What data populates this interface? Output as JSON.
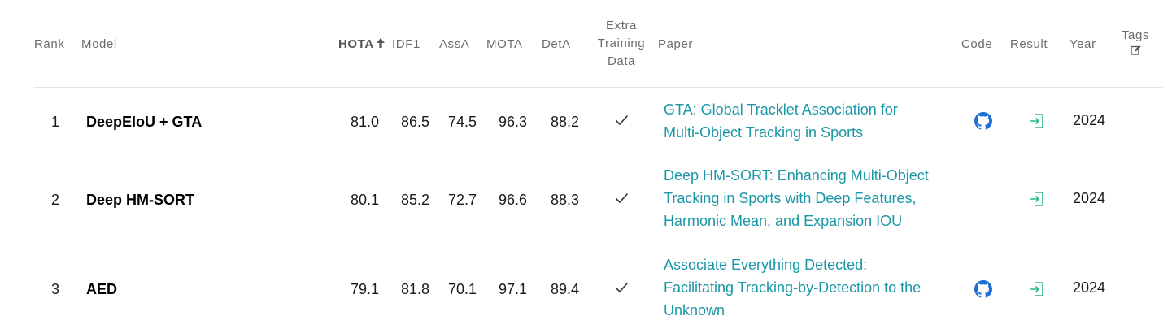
{
  "headers": {
    "rank": "Rank",
    "model": "Model",
    "hota": "HOTA",
    "idf1": "IDF1",
    "assa": "AssA",
    "mota": "MOTA",
    "deta": "DetA",
    "extra_line1": "Extra",
    "extra_line2": "Training",
    "extra_line3": "Data",
    "paper": "Paper",
    "code": "Code",
    "result": "Result",
    "year": "Year",
    "tags": "Tags"
  },
  "sorted_column": "HOTA",
  "sort_direction": "descending",
  "colors": {
    "paper_link": "#1b97a6",
    "github_icon": "#1f6fd6",
    "result_icon": "#2fb38a",
    "header_text": "#6b6b6b",
    "divider": "#e5e5e5"
  },
  "rows": [
    {
      "rank": "1",
      "model": "DeepEIoU + GTA",
      "hota": "81.0",
      "idf1": "86.5",
      "assa": "74.5",
      "mota": "96.3",
      "deta": "88.2",
      "extra_training_data": true,
      "paper_line1": "GTA: Global Tracklet Association for",
      "paper_line2": "Multi-Object Tracking in Sports",
      "paper_line3": "",
      "has_code": true,
      "has_result": true,
      "year": "2024"
    },
    {
      "rank": "2",
      "model": "Deep HM-SORT",
      "hota": "80.1",
      "idf1": "85.2",
      "assa": "72.7",
      "mota": "96.6",
      "deta": "88.3",
      "extra_training_data": true,
      "paper_line1": "Deep HM-SORT: Enhancing Multi-Object",
      "paper_line2": "Tracking in Sports with Deep Features,",
      "paper_line3": "Harmonic Mean, and Expansion IOU",
      "has_code": false,
      "has_result": true,
      "year": "2024"
    },
    {
      "rank": "3",
      "model": "AED",
      "hota": "79.1",
      "idf1": "81.8",
      "assa": "70.1",
      "mota": "97.1",
      "deta": "89.4",
      "extra_training_data": true,
      "paper_line1": "Associate Everything Detected:",
      "paper_line2": "Facilitating Tracking-by-Detection to the",
      "paper_line3": "Unknown",
      "has_code": true,
      "has_result": true,
      "year": "2024"
    }
  ]
}
